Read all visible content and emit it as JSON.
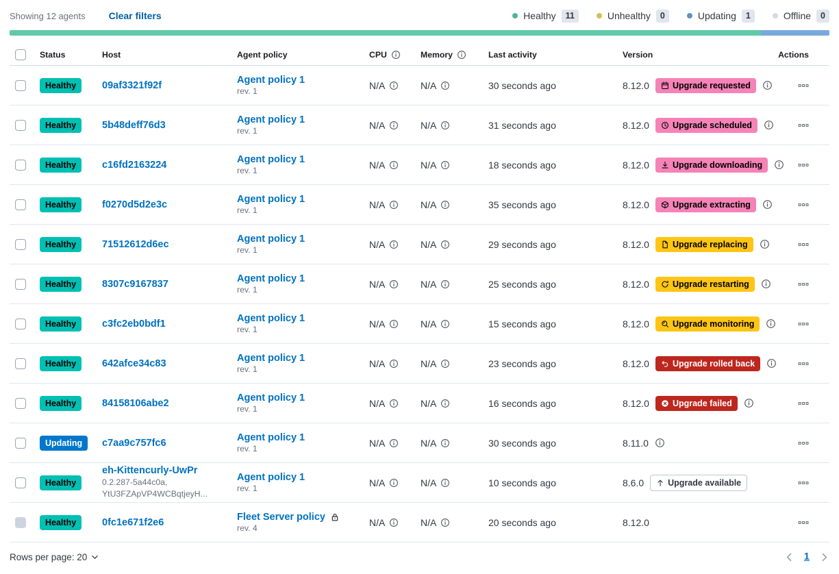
{
  "colors": {
    "success_teal": "#00BFB3",
    "primary_blue": "#0077CC",
    "accent_pink": "#F583B7",
    "warning_yellow": "#FEC514",
    "danger_red": "#BD271E",
    "link_blue": "#0071C2",
    "bar_green": "#61C9A8",
    "bar_blue": "#78A9DC",
    "text_primary": "#343741",
    "text_subdued": "#69707D",
    "border": "#D3DAE6"
  },
  "topbar": {
    "showing": "Showing 12 agents",
    "clear_filters": "Clear filters",
    "legend": [
      {
        "label": "Healthy",
        "count": "11",
        "color": "#54B399"
      },
      {
        "label": "Unhealthy",
        "count": "0",
        "color": "#D6BF57"
      },
      {
        "label": "Updating",
        "count": "1",
        "color": "#6092C0"
      },
      {
        "label": "Offline",
        "count": "0",
        "color": "#D3DAE6"
      }
    ]
  },
  "status_bar": {
    "segments": [
      {
        "name": "healthy",
        "color": "#61C9A8",
        "weight": 11
      },
      {
        "name": "updating",
        "color": "#78A9DC",
        "weight": 1
      }
    ]
  },
  "table": {
    "columns": {
      "status": "Status",
      "host": "Host",
      "policy": "Agent policy",
      "cpu": "CPU",
      "memory": "Memory",
      "last_activity": "Last activity",
      "version": "Version",
      "actions": "Actions"
    }
  },
  "rows": [
    {
      "status": "Healthy",
      "status_style": "healthy",
      "host": "09af3321f92f",
      "host_sub": null,
      "policy": "Agent policy 1",
      "policy_rev": "rev. 1",
      "policy_locked": false,
      "cpu": "N/A",
      "memory": "N/A",
      "last_activity": "30 seconds ago",
      "version": "8.12.0",
      "upgrade": {
        "label": "Upgrade requested",
        "style": "pink",
        "icon": "calendar-icon"
      },
      "version_info": true,
      "checkbox_disabled": false
    },
    {
      "status": "Healthy",
      "status_style": "healthy",
      "host": "5b48deff76d3",
      "host_sub": null,
      "policy": "Agent policy 1",
      "policy_rev": "rev. 1",
      "policy_locked": false,
      "cpu": "N/A",
      "memory": "N/A",
      "last_activity": "31 seconds ago",
      "version": "8.12.0",
      "upgrade": {
        "label": "Upgrade scheduled",
        "style": "pink",
        "icon": "clock-icon"
      },
      "version_info": true,
      "checkbox_disabled": false
    },
    {
      "status": "Healthy",
      "status_style": "healthy",
      "host": "c16fd2163224",
      "host_sub": null,
      "policy": "Agent policy 1",
      "policy_rev": "rev. 1",
      "policy_locked": false,
      "cpu": "N/A",
      "memory": "N/A",
      "last_activity": "18 seconds ago",
      "version": "8.12.0",
      "upgrade": {
        "label": "Upgrade downloading",
        "style": "pink",
        "icon": "download-icon"
      },
      "version_info": true,
      "checkbox_disabled": false
    },
    {
      "status": "Healthy",
      "status_style": "healthy",
      "host": "f0270d5d2e3c",
      "host_sub": null,
      "policy": "Agent policy 1",
      "policy_rev": "rev. 1",
      "policy_locked": false,
      "cpu": "N/A",
      "memory": "N/A",
      "last_activity": "35 seconds ago",
      "version": "8.12.0",
      "upgrade": {
        "label": "Upgrade extracting",
        "style": "pink",
        "icon": "package-icon"
      },
      "version_info": true,
      "checkbox_disabled": false
    },
    {
      "status": "Healthy",
      "status_style": "healthy",
      "host": "71512612d6ec",
      "host_sub": null,
      "policy": "Agent policy 1",
      "policy_rev": "rev. 1",
      "policy_locked": false,
      "cpu": "N/A",
      "memory": "N/A",
      "last_activity": "29 seconds ago",
      "version": "8.12.0",
      "upgrade": {
        "label": "Upgrade replacing",
        "style": "yellow",
        "icon": "document-icon"
      },
      "version_info": true,
      "checkbox_disabled": false
    },
    {
      "status": "Healthy",
      "status_style": "healthy",
      "host": "8307c9167837",
      "host_sub": null,
      "policy": "Agent policy 1",
      "policy_rev": "rev. 1",
      "policy_locked": false,
      "cpu": "N/A",
      "memory": "N/A",
      "last_activity": "25 seconds ago",
      "version": "8.12.0",
      "upgrade": {
        "label": "Upgrade restarting",
        "style": "yellow",
        "icon": "refresh-icon"
      },
      "version_info": true,
      "checkbox_disabled": false
    },
    {
      "status": "Healthy",
      "status_style": "healthy",
      "host": "c3fc2eb0bdf1",
      "host_sub": null,
      "policy": "Agent policy 1",
      "policy_rev": "rev. 1",
      "policy_locked": false,
      "cpu": "N/A",
      "memory": "N/A",
      "last_activity": "15 seconds ago",
      "version": "8.12.0",
      "upgrade": {
        "label": "Upgrade monitoring",
        "style": "yellow",
        "icon": "inspect-icon"
      },
      "version_info": true,
      "checkbox_disabled": false
    },
    {
      "status": "Healthy",
      "status_style": "healthy",
      "host": "642afce34c83",
      "host_sub": null,
      "policy": "Agent policy 1",
      "policy_rev": "rev. 1",
      "policy_locked": false,
      "cpu": "N/A",
      "memory": "N/A",
      "last_activity": "23 seconds ago",
      "version": "8.12.0",
      "upgrade": {
        "label": "Upgrade rolled back",
        "style": "red",
        "icon": "return-icon"
      },
      "version_info": true,
      "checkbox_disabled": false
    },
    {
      "status": "Healthy",
      "status_style": "healthy",
      "host": "84158106abe2",
      "host_sub": null,
      "policy": "Agent policy 1",
      "policy_rev": "rev. 1",
      "policy_locked": false,
      "cpu": "N/A",
      "memory": "N/A",
      "last_activity": "16 seconds ago",
      "version": "8.12.0",
      "upgrade": {
        "label": "Upgrade failed",
        "style": "red",
        "icon": "error-icon"
      },
      "version_info": true,
      "checkbox_disabled": false
    },
    {
      "status": "Updating",
      "status_style": "updating",
      "host": "c7aa9c757fc6",
      "host_sub": null,
      "policy": "Agent policy 1",
      "policy_rev": "rev. 1",
      "policy_locked": false,
      "cpu": "N/A",
      "memory": "N/A",
      "last_activity": "30 seconds ago",
      "version": "8.11.0",
      "upgrade": null,
      "version_info": true,
      "checkbox_disabled": false
    },
    {
      "status": "Healthy",
      "status_style": "healthy",
      "host": "eh-Kittencurly-UwPr",
      "host_sub": [
        "0.2.287-5a44c0a,",
        "YtU3FZApVP4WCBqtjeyH..."
      ],
      "policy": "Agent policy 1",
      "policy_rev": "rev. 1",
      "policy_locked": false,
      "cpu": "N/A",
      "memory": "N/A",
      "last_activity": "10 seconds ago",
      "version": "8.6.0",
      "upgrade": {
        "label": "Upgrade available",
        "style": "hollow",
        "icon": "arrow-up-icon"
      },
      "version_info": false,
      "checkbox_disabled": false
    },
    {
      "status": "Healthy",
      "status_style": "healthy",
      "host": "0fc1e671f2e6",
      "host_sub": null,
      "policy": "Fleet Server policy",
      "policy_rev": "rev. 4",
      "policy_locked": true,
      "cpu": "N/A",
      "memory": "N/A",
      "last_activity": "20 seconds ago",
      "version": "8.12.0",
      "upgrade": null,
      "version_info": false,
      "checkbox_disabled": true
    }
  ],
  "footer": {
    "rows_per_page": "Rows per page: 20",
    "page": "1"
  }
}
